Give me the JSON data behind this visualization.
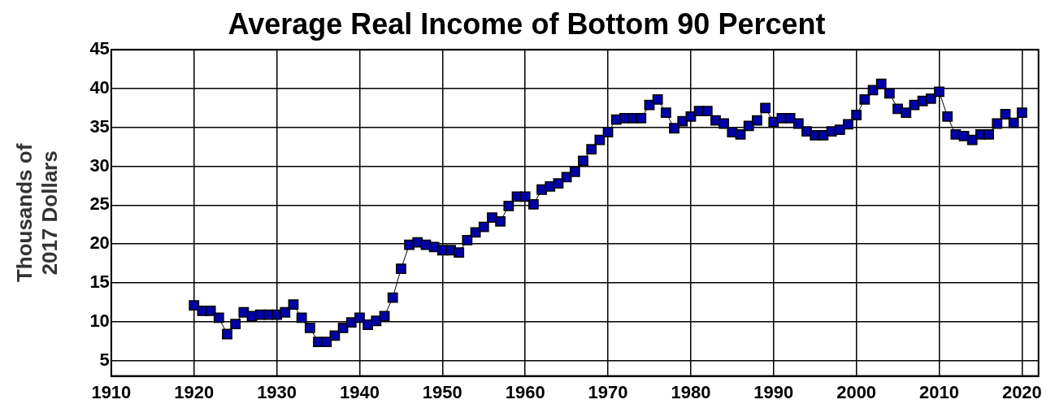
{
  "chart_data": {
    "type": "line",
    "title": "Average Real Income of Bottom 90 Percent",
    "ylabel": "Thousands of 2017 Dollars",
    "x": [
      1920,
      1921,
      1922,
      1923,
      1924,
      1925,
      1926,
      1927,
      1928,
      1929,
      1930,
      1931,
      1932,
      1933,
      1934,
      1935,
      1936,
      1937,
      1938,
      1939,
      1940,
      1941,
      1942,
      1943,
      1944,
      1945,
      1946,
      1947,
      1948,
      1949,
      1950,
      1951,
      1952,
      1953,
      1954,
      1955,
      1956,
      1957,
      1958,
      1959,
      1960,
      1961,
      1962,
      1963,
      1964,
      1965,
      1966,
      1967,
      1968,
      1969,
      1970,
      1971,
      1972,
      1973,
      1974,
      1975,
      1976,
      1977,
      1978,
      1979,
      1980,
      1981,
      1982,
      1983,
      1984,
      1985,
      1986,
      1987,
      1988,
      1989,
      1990,
      1991,
      1992,
      1993,
      1994,
      1995,
      1996,
      1997,
      1998,
      1999,
      2000,
      2001,
      2002,
      2003,
      2004,
      2005,
      2006,
      2007,
      2008,
      2009,
      2010,
      2011,
      2012,
      2013,
      2014,
      2015,
      2016,
      2017,
      2018,
      2019,
      2020
    ],
    "series": [
      {
        "color": "#0000a8",
        "values": [
          12.1,
          11.4,
          11.4,
          10.5,
          8.4,
          9.7,
          11.2,
          10.7,
          10.9,
          10.9,
          10.9,
          11.2,
          12.2,
          10.5,
          9.2,
          7.4,
          7.4,
          8.2,
          9.2,
          9.9,
          10.5,
          9.6,
          10.1,
          10.7,
          13.1,
          16.8,
          19.9,
          20.2,
          19.9,
          19.6,
          19.2,
          19.2,
          18.9,
          20.5,
          21.5,
          22.2,
          23.4,
          22.9,
          24.9,
          26.1,
          26.1,
          25.1,
          27.0,
          27.4,
          27.8,
          28.6,
          29.3,
          30.7,
          32.2,
          33.4,
          34.4,
          36.0,
          36.2,
          36.2,
          36.2,
          37.9,
          38.6,
          36.9,
          34.9,
          35.8,
          36.4,
          37.1,
          37.1,
          35.9,
          35.5,
          34.4,
          34.1,
          35.2,
          35.9,
          37.5,
          35.7,
          36.2,
          36.2,
          35.5,
          34.5,
          34.0,
          34.0,
          34.5,
          34.7,
          35.4,
          36.6,
          38.6,
          39.8,
          40.6,
          39.4,
          37.4,
          36.9,
          37.9,
          38.4,
          38.7,
          39.6,
          36.4,
          34.1,
          33.9,
          33.4,
          34.1,
          34.1,
          35.5,
          36.7,
          35.6,
          36.9
        ]
      }
    ],
    "xlim": [
      1910,
      2022
    ],
    "xticks": [
      1910,
      1920,
      1930,
      1940,
      1950,
      1960,
      1970,
      1980,
      1990,
      2000,
      2010,
      2020
    ],
    "ylim": [
      3,
      45
    ],
    "yticks": [
      5,
      10,
      15,
      20,
      25,
      30,
      35,
      40,
      45
    ],
    "grid": true,
    "marker": "square",
    "line_style": "solid",
    "legend": false
  }
}
